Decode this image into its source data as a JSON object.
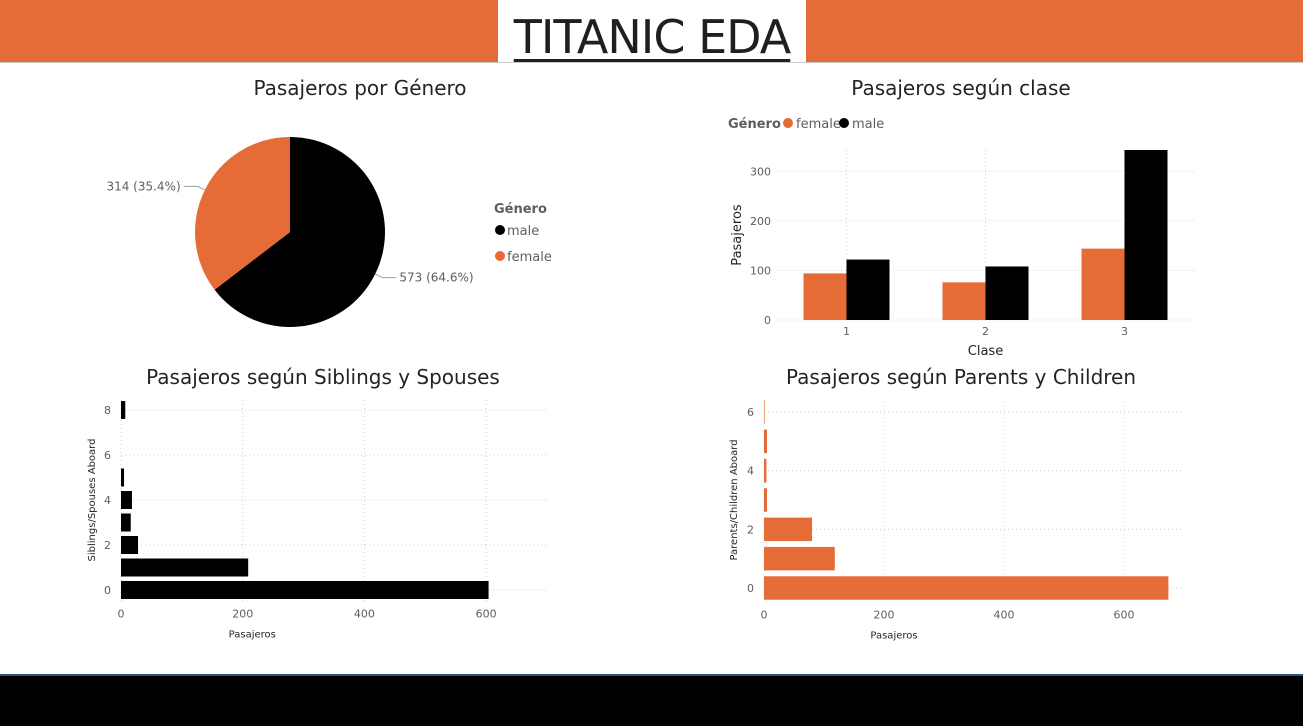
{
  "header": {
    "title": "TITANIC EDA",
    "band_color": "#E66C37"
  },
  "colors": {
    "female": "#E66C37",
    "male": "#000000",
    "grid": "#d0d0d0",
    "tick": "#605E5C"
  },
  "chart_data": [
    {
      "type": "pie",
      "title": "Pasajeros por Género",
      "legend_title": "Género",
      "legend_position": "right",
      "slices": [
        {
          "name": "male",
          "value": 573,
          "label": "573 (64.6%)"
        },
        {
          "name": "female",
          "value": 314,
          "label": "314 (35.4%)"
        }
      ]
    },
    {
      "type": "bar",
      "title": "Pasajeros según clase",
      "legend_title": "Género",
      "legend_position": "top-left",
      "xlabel": "Clase",
      "ylabel": "Pasajeros",
      "categories": [
        "1",
        "2",
        "3"
      ],
      "series": [
        {
          "name": "female",
          "values": [
            94,
            76,
            144
          ]
        },
        {
          "name": "male",
          "values": [
            122,
            108,
            343
          ]
        }
      ],
      "ylim": [
        0,
        343
      ],
      "yticks": [
        0,
        100,
        200,
        300
      ],
      "grid": true
    },
    {
      "type": "bar",
      "orientation": "horizontal",
      "title": "Pasajeros según Siblings y Spouses",
      "xlabel": "Pasajeros",
      "ylabel": "Siblings/Spouses Aboard",
      "categories": [
        0,
        1,
        2,
        3,
        4,
        5,
        8
      ],
      "values": [
        604,
        209,
        28,
        16,
        18,
        5,
        7
      ],
      "xlim": [
        0,
        700
      ],
      "xticks": [
        0,
        200,
        400,
        600
      ],
      "yticks": [
        0,
        2,
        4,
        6,
        8
      ],
      "grid": true
    },
    {
      "type": "bar",
      "orientation": "horizontal",
      "title": "Pasajeros según Parents y Children",
      "xlabel": "Pasajeros",
      "ylabel": "Parents/Children Aboard",
      "categories": [
        0,
        1,
        2,
        3,
        4,
        5,
        6
      ],
      "values": [
        674,
        118,
        80,
        5,
        4,
        5,
        1
      ],
      "xlim": [
        0,
        700
      ],
      "xticks": [
        0,
        200,
        400,
        600
      ],
      "yticks": [
        0,
        2,
        4,
        6
      ],
      "grid": true
    }
  ]
}
